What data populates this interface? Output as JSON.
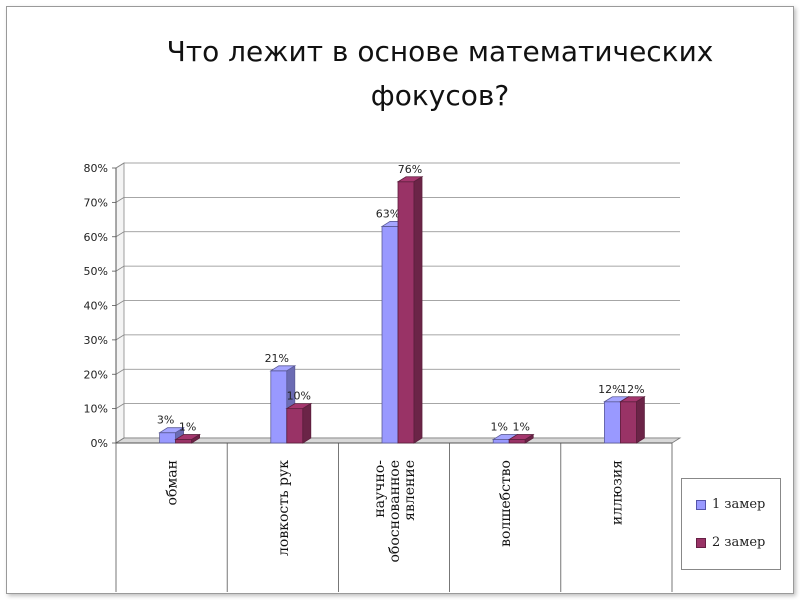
{
  "title": "Что лежит в основе математических фокусов?",
  "chart_data": {
    "type": "bar",
    "categories": [
      "обман",
      "ловкость рук",
      "научно-обоснованное явление",
      "волшебство",
      "иллюзия"
    ],
    "category_lines": [
      [
        "обман"
      ],
      [
        "ловкость рук"
      ],
      [
        "научно-",
        "обоснованное",
        "явление"
      ],
      [
        "волшебство"
      ],
      [
        "иллюзия"
      ]
    ],
    "series": [
      {
        "name": "1 замер",
        "values": [
          3,
          21,
          63,
          1,
          12
        ],
        "labels": [
          "3%",
          "21%",
          "63%",
          "1%",
          "12%"
        ],
        "color": "#9999ff"
      },
      {
        "name": "2 замер",
        "values": [
          1,
          10,
          76,
          1,
          12
        ],
        "labels": [
          "1%",
          "10%",
          "76%",
          "1%",
          "12%"
        ],
        "color": "#993366"
      }
    ],
    "yticks": [
      "0%",
      "10%",
      "20%",
      "30%",
      "40%",
      "50%",
      "60%",
      "70%",
      "80%"
    ],
    "ylim": [
      0,
      80
    ],
    "grid": true,
    "legend_position": "bottom-right"
  }
}
